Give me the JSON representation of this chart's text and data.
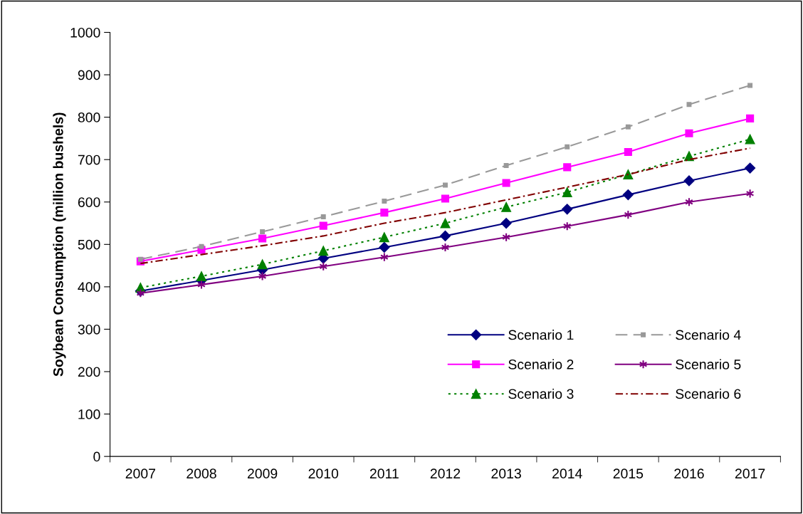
{
  "chart_data": {
    "type": "line",
    "ylabel": "Soybean Consumption (million bushels)",
    "categories": [
      "2007",
      "2008",
      "2009",
      "2010",
      "2011",
      "2012",
      "2013",
      "2014",
      "2015",
      "2016",
      "2017"
    ],
    "ylim": [
      0,
      1000
    ],
    "yticks": [
      0,
      100,
      200,
      300,
      400,
      500,
      600,
      700,
      800,
      900,
      1000
    ],
    "grid": false,
    "legend": "bottom right",
    "series": [
      {
        "name": "Scenario 1",
        "color": "#000080",
        "marker": "diamond",
        "line_style": "solid",
        "values": [
          390,
          415,
          440,
          467,
          493,
          520,
          550,
          583,
          617,
          650,
          680
        ]
      },
      {
        "name": "Scenario 2",
        "color": "#ff00ff",
        "marker": "square",
        "line_style": "solid",
        "values": [
          460,
          487,
          514,
          544,
          575,
          608,
          645,
          682,
          718,
          762,
          797
        ]
      },
      {
        "name": "Scenario 3",
        "color": "#008000",
        "marker": "triangle",
        "line_style": "dotted",
        "values": [
          398,
          425,
          453,
          485,
          517,
          550,
          588,
          623,
          665,
          708,
          748
        ]
      },
      {
        "name": "Scenario 4",
        "color": "#999999",
        "marker": "square",
        "line_style": "dashed",
        "values": [
          465,
          495,
          530,
          565,
          602,
          640,
          686,
          730,
          777,
          830,
          875
        ]
      },
      {
        "name": "Scenario 5",
        "color": "#800080",
        "marker": "cross",
        "line_style": "solid",
        "values": [
          385,
          405,
          425,
          448,
          470,
          493,
          517,
          543,
          570,
          600,
          620
        ]
      },
      {
        "name": "Scenario 6",
        "color": "#800000",
        "marker": "none",
        "line_style": "dashdot",
        "values": [
          455,
          476,
          497,
          520,
          550,
          575,
          605,
          635,
          665,
          700,
          727
        ]
      }
    ]
  }
}
